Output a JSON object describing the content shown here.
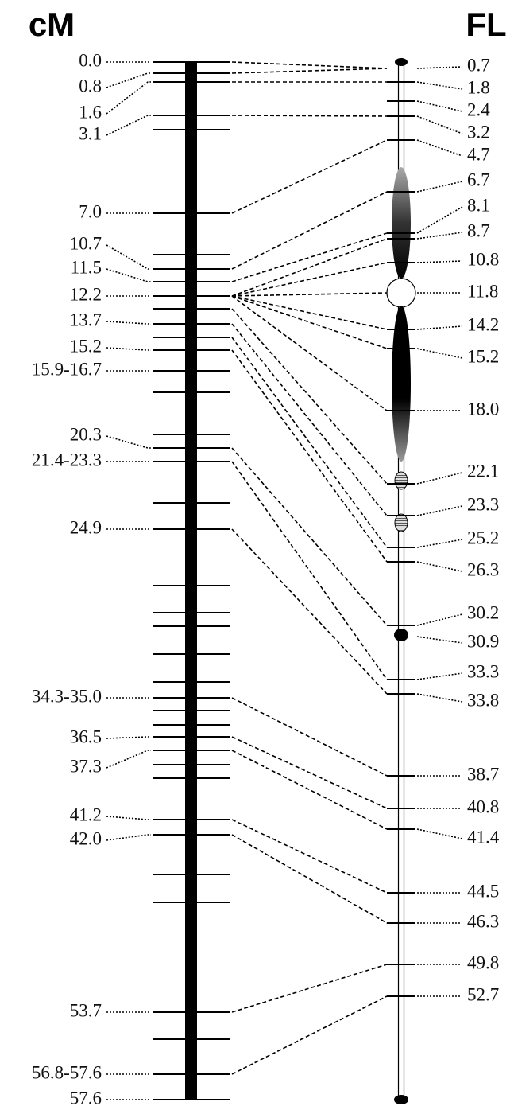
{
  "header": {
    "left": "cM",
    "right": "FL"
  },
  "left_labels": [
    "0.0",
    "0.8",
    "1.6",
    "3.1",
    "7.0",
    "10.7",
    "11.5",
    "12.2",
    "13.7",
    "15.2",
    "15.9-16.7",
    "20.3",
    "21.4-23.3",
    "24.9",
    "34.3-35.0",
    "36.5",
    "37.3",
    "41.2",
    "42.0",
    "53.7",
    "56.8-57.6",
    "57.6"
  ],
  "right_labels": [
    "0.7",
    "1.8",
    "2.4",
    "3.2",
    "4.7",
    "6.7",
    "8.1",
    "8.7",
    "10.8",
    "11.8",
    "14.2",
    "15.2",
    "18.0",
    "22.1",
    "23.3",
    "25.2",
    "26.3",
    "30.2",
    "30.9",
    "33.3",
    "33.8",
    "38.7",
    "40.8",
    "41.4",
    "44.5",
    "46.3",
    "49.8",
    "52.7"
  ]
}
